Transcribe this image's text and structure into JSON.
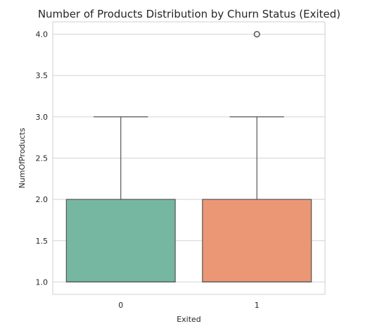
{
  "chart_data": {
    "type": "box",
    "title": "Number of Products Distribution by Churn Status (Exited)",
    "xlabel": "Exited",
    "ylabel": "NumOfProducts",
    "categories": [
      "0",
      "1"
    ],
    "y_ticks": [
      "1.0",
      "1.5",
      "2.0",
      "2.5",
      "3.0",
      "3.5",
      "4.0"
    ],
    "ylim": [
      0.85,
      4.15
    ],
    "grid": true,
    "boxes": [
      {
        "category": "0",
        "whisker_low": 1.0,
        "q1": 1.0,
        "median": 1.0,
        "q3": 2.0,
        "whisker_high": 3.0,
        "outliers": [],
        "color": "#76b7a2"
      },
      {
        "category": "1",
        "whisker_low": 1.0,
        "q1": 1.0,
        "median": 1.0,
        "q3": 2.0,
        "whisker_high": 3.0,
        "outliers": [
          4.0
        ],
        "color": "#eb9775"
      }
    ]
  }
}
